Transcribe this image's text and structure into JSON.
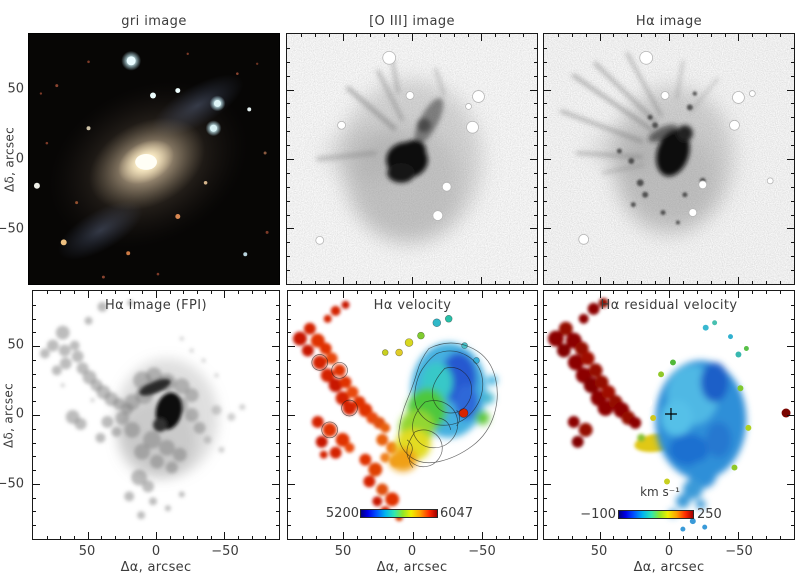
{
  "figure": {
    "bg_color": "#ffffff",
    "text_color": "#3c3c3c"
  },
  "panels": {
    "gri": {
      "title": "gri image"
    },
    "oiii": {
      "title": "[O III] image"
    },
    "ha": {
      "title": "Hα image"
    },
    "fpi": {
      "title": "Hα image (FPI)"
    },
    "vel": {
      "title": "Hα velocity",
      "colorbar_min": "5200",
      "colorbar_max": "6047"
    },
    "res": {
      "title": "Hα residual velocity",
      "colorbar_min": "−100",
      "colorbar_max": "250",
      "colorbar_units": "km s⁻¹"
    }
  },
  "axes": {
    "x_label": "Δα, arcsec",
    "y_label": "Δδ, arcsec",
    "tick_values": [
      "50",
      "0",
      "−50"
    ]
  },
  "chart_data": [
    {
      "type": "heatmap",
      "panel": "top-left",
      "title": "gri image",
      "ylabel": "Δδ, arcsec",
      "xlim": [
        90,
        -90
      ],
      "ylim": [
        -90,
        90
      ],
      "xticks": [
        50,
        0,
        -50
      ],
      "yticks": [
        50,
        0,
        -50
      ],
      "grid": false,
      "content": "true-color gri composite: bright yellowish bulge, diffuse tilted halo, faint blue spiral arms, colored foreground stars on black sky"
    },
    {
      "type": "heatmap",
      "panel": "top-middle",
      "title": "[O III] image",
      "xlim": [
        90,
        -90
      ],
      "ylim": [
        -90,
        90
      ],
      "xticks": [
        50,
        0,
        -50
      ],
      "yticks": [
        50,
        0,
        -50
      ],
      "grid": false,
      "content": "inverted grayscale [O III] narrow-band image: dark nucleus with dark lane to upper right, faint filaments to upper left, masked stars as white circles over light noisy background"
    },
    {
      "type": "heatmap",
      "panel": "top-right",
      "title": "Hα image",
      "xlim": [
        90,
        -90
      ],
      "ylim": [
        -90,
        90
      ],
      "xticks": [
        50,
        0,
        -50
      ],
      "yticks": [
        50,
        0,
        -50
      ],
      "grid": false,
      "content": "inverted grayscale Hα image: dark nucleus right of center, radial filaments fanning to upper left, dark knots below center, masked stars as white circles"
    },
    {
      "type": "heatmap",
      "panel": "bottom-left",
      "title": "Hα image (FPI)",
      "xlabel": "Δα, arcsec",
      "ylabel": "Δδ, arcsec",
      "xlim": [
        90,
        -90
      ],
      "ylim": [
        -90,
        90
      ],
      "xticks": [
        50,
        0,
        -50
      ],
      "yticks": [
        50,
        0,
        -50
      ],
      "grid": false,
      "content": "Fabry–Perot Hα intensity map: clumpy gray emission with dark core and chain of clumps extending to upper left on white background"
    },
    {
      "type": "heatmap",
      "panel": "bottom-middle",
      "title": "Hα velocity",
      "xlabel": "Δα, arcsec",
      "xlim": [
        90,
        -90
      ],
      "ylim": [
        -90,
        90
      ],
      "xticks": [
        50,
        0,
        -50
      ],
      "yticks": [
        50,
        0,
        -50
      ],
      "grid": false,
      "colormap": "rainbow",
      "colorbar_range": [
        5200,
        6047
      ],
      "content": "line-of-sight velocity field with black isovelocity contours: red/orange streamer on east (left) side, yellow-green center, blue-cyan on west (right) side"
    },
    {
      "type": "heatmap",
      "panel": "bottom-right",
      "title": "Hα residual velocity",
      "xlabel": "Δα, arcsec",
      "xlim": [
        90,
        -90
      ],
      "ylim": [
        -90,
        90
      ],
      "xticks": [
        50,
        0,
        -50
      ],
      "yticks": [
        50,
        0,
        -50
      ],
      "grid": false,
      "colormap": "rainbow",
      "colorbar_range": [
        -100,
        250
      ],
      "colorbar_units": "km s⁻¹",
      "content": "residual velocity map: dark-red high residual streamer upper left, yellow-orange patch mid-left, large blue/cyan near-zero region center-right with black cross at nucleus, isolated dark-red spot at right"
    }
  ]
}
